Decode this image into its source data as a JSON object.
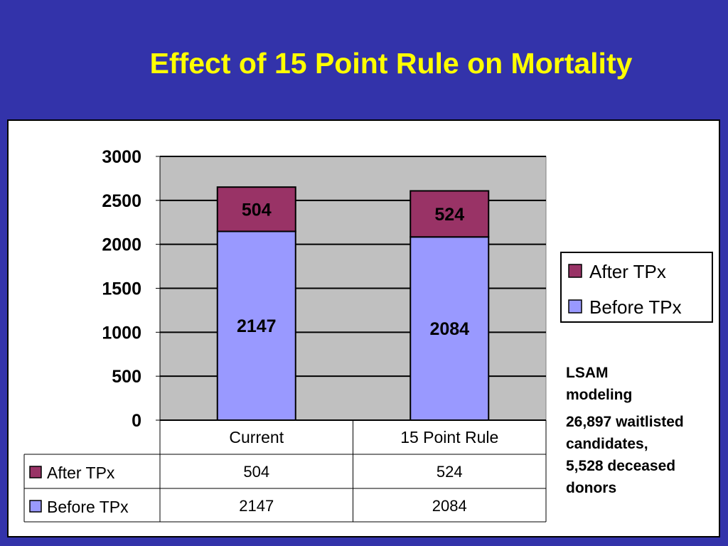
{
  "title": "Effect of 15 Point Rule on Mortality",
  "chart_data": {
    "type": "bar",
    "stacked": true,
    "categories": [
      "Current",
      "15 Point Rule"
    ],
    "series": [
      {
        "name": "Before TPx",
        "values": [
          2147,
          2084
        ],
        "color": "#9999ff"
      },
      {
        "name": "After TPx",
        "values": [
          504,
          524
        ],
        "color": "#993366"
      }
    ],
    "ylim": [
      0,
      3000
    ],
    "yticks": [
      0,
      500,
      1000,
      1500,
      2000,
      2500,
      3000
    ],
    "grid": true,
    "legend": "right",
    "data_table": true
  },
  "notes": {
    "line1": "LSAM",
    "line2": "modeling",
    "details": [
      "26,897 waitlisted",
      "candidates,",
      "5,528 deceased",
      "donors"
    ]
  }
}
